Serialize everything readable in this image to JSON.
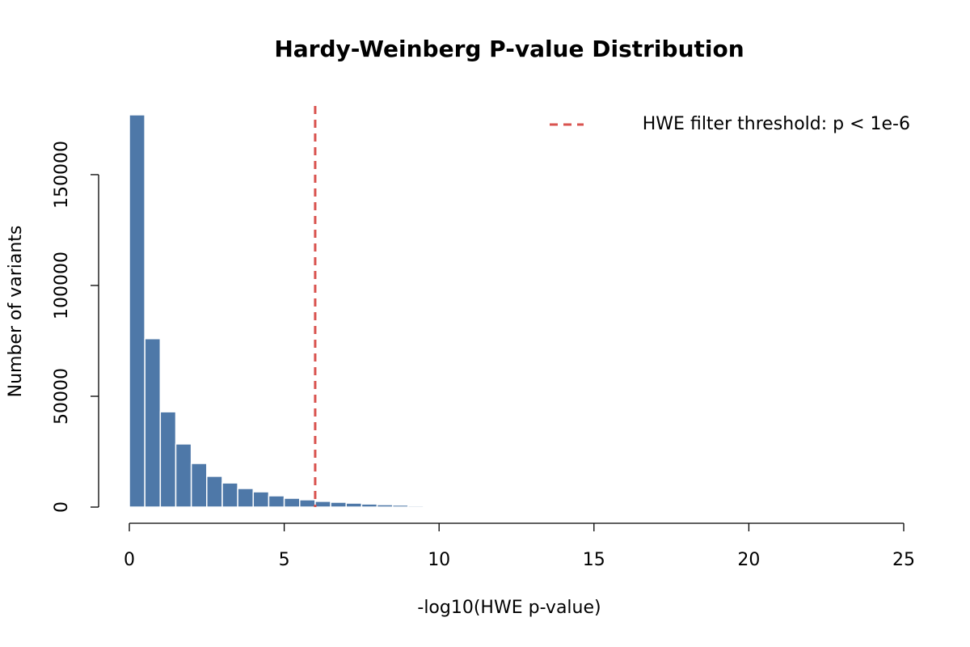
{
  "chart_data": {
    "type": "histogram",
    "title": "Hardy-Weinberg P-value Distribution",
    "x_label": "-log10(HWE p-value)",
    "y_label": "Number of variants",
    "bins": [
      0,
      0.5,
      1,
      1.5,
      2,
      2.5,
      3,
      3.5,
      4,
      4.5,
      5,
      5.5,
      6,
      6.5,
      7,
      7.5,
      8,
      8.5,
      9,
      9.5,
      10
    ],
    "values": [
      177000,
      76000,
      43000,
      28500,
      19700,
      13900,
      10900,
      8400,
      6900,
      5100,
      4000,
      3300,
      2600,
      2200,
      1800,
      1400,
      1100,
      900,
      600,
      400
    ],
    "color": "#4e78a8",
    "xlim": [
      0,
      25
    ],
    "xticks": [
      0,
      5,
      10,
      15,
      20,
      25
    ],
    "ylim": [
      0,
      181000
    ],
    "yticks": [
      0,
      50000,
      100000,
      150000
    ],
    "threshold": {
      "value": 6,
      "label": "HWE filter threshold: p < 1e-6",
      "color": "#d9534f"
    },
    "legend": "topright"
  }
}
